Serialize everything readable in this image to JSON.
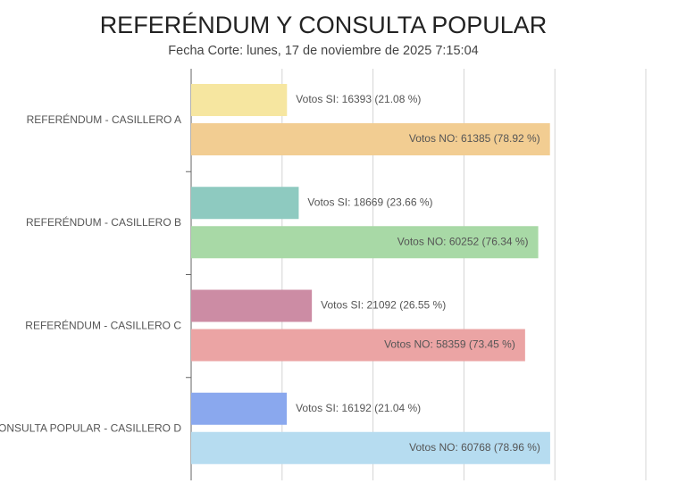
{
  "chart_data": {
    "type": "bar",
    "orientation": "horizontal",
    "title": "REFERÉNDUM Y CONSULTA POPULAR",
    "subtitle": "Fecha Corte: lunes, 17 de noviembre de 2025 7:15:04",
    "categories": [
      "REFERÉNDUM - CASILLERO A",
      "REFERÉNDUM - CASILLERO B",
      "REFERÉNDUM - CASILLERO C",
      "CONSULTA POPULAR - CASILLERO D"
    ],
    "series": [
      {
        "colors": [
          "#f6e6a0",
          "#8ecac0",
          "#cc8ca4",
          "#8aa8ee"
        ],
        "values": [
          21.08,
          23.66,
          26.55,
          21.04
        ],
        "value_labels": [
          "Votos SI: 16393 (21.08 %)",
          "Votos SI: 18669 (23.66 %)",
          "Votos SI: 21092 (26.55 %)",
          "Votos SI: 16192 (21.04 %)"
        ]
      },
      {
        "colors": [
          "#f2cd92",
          "#a8d9a6",
          "#eba4a4",
          "#b6dcf0"
        ],
        "values": [
          78.92,
          76.34,
          73.45,
          78.96
        ],
        "value_labels": [
          "Votos NO: 61385 (78.92 %)",
          "Votos NO: 60252 (76.34 %)",
          "Votos NO: 58359 (73.45 %)",
          "Votos NO: 60768 (78.96 %)"
        ]
      }
    ],
    "xlim": [
      0,
      100
    ],
    "xticks": [
      0,
      20,
      40,
      60,
      80,
      100
    ],
    "grid": true
  }
}
